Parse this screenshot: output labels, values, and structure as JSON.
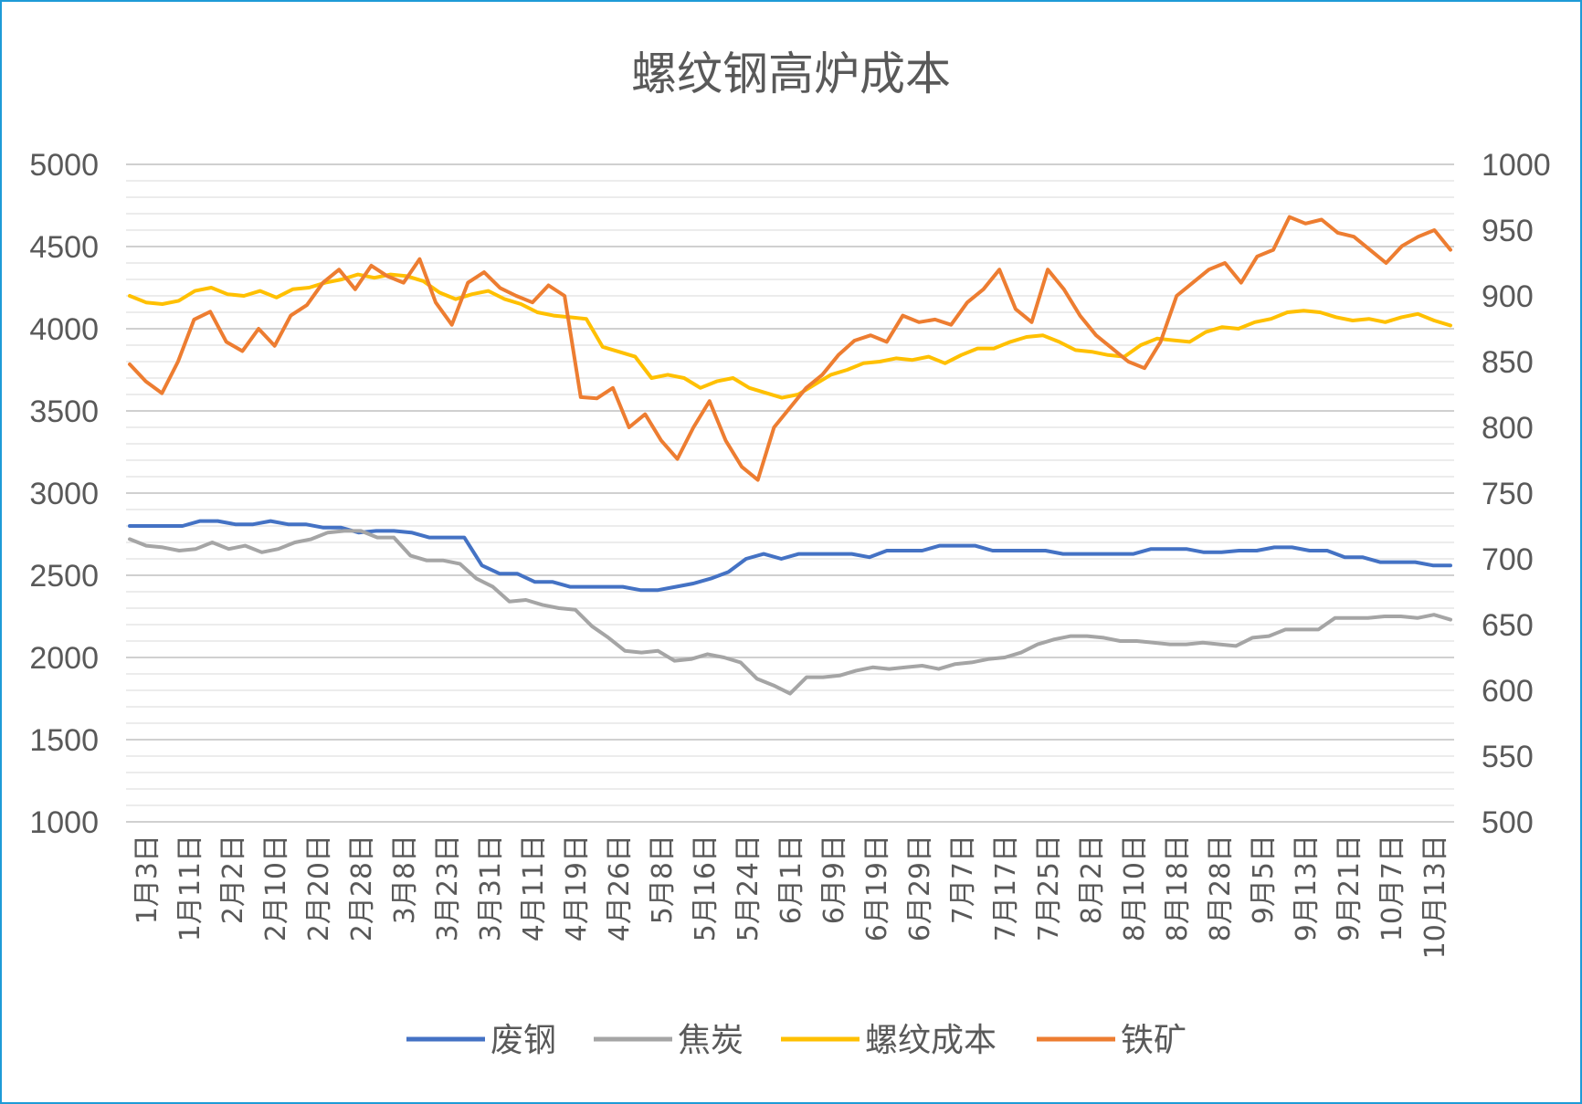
{
  "chart_data": {
    "type": "line",
    "title": "螺纹钢高炉成本",
    "left_axis": {
      "min": 1000,
      "max": 5000,
      "ticks": [
        "1000",
        "1500",
        "2000",
        "2500",
        "3000",
        "3500",
        "4000",
        "4500",
        "5000"
      ]
    },
    "right_axis": {
      "min": 500,
      "max": 1000,
      "ticks": [
        "500",
        "550",
        "600",
        "650",
        "700",
        "750",
        "800",
        "850",
        "900",
        "950",
        "1000"
      ]
    },
    "grid": true,
    "legend_position": "bottom",
    "x_labels": [
      "1月3日",
      "1月11日",
      "2月2日",
      "2月10日",
      "2月20日",
      "2月28日",
      "3月8日",
      "3月23日",
      "3月31日",
      "4月11日",
      "4月19日",
      "4月26日",
      "5月8日",
      "5月16日",
      "5月24日",
      "6月1日",
      "6月9日",
      "6月19日",
      "6月29日",
      "7月7日",
      "7月17日",
      "7月25日",
      "8月2日",
      "8月10日",
      "8月18日",
      "8月28日",
      "9月5日",
      "9月13日",
      "9月21日",
      "10月7日",
      "10月13日"
    ],
    "series": [
      {
        "name": "废钢",
        "axis": "left",
        "color": "#4472c4",
        "values": [
          2800,
          2800,
          2800,
          2800,
          2830,
          2830,
          2810,
          2810,
          2830,
          2810,
          2810,
          2790,
          2790,
          2760,
          2770,
          2770,
          2760,
          2730,
          2730,
          2730,
          2560,
          2510,
          2510,
          2460,
          2460,
          2430,
          2430,
          2430,
          2430,
          2410,
          2410,
          2430,
          2450,
          2480,
          2520,
          2600,
          2630,
          2600,
          2630,
          2630,
          2630,
          2630,
          2610,
          2650,
          2650,
          2650,
          2680,
          2680,
          2680,
          2650,
          2650,
          2650,
          2650,
          2630,
          2630,
          2630,
          2630,
          2630,
          2660,
          2660,
          2660,
          2640,
          2640,
          2650,
          2650,
          2670,
          2670,
          2650,
          2650,
          2610,
          2610,
          2580,
          2580,
          2580,
          2560,
          2560
        ]
      },
      {
        "name": "焦炭",
        "axis": "left",
        "color": "#a5a5a5",
        "values": [
          2720,
          2680,
          2670,
          2650,
          2660,
          2700,
          2660,
          2680,
          2640,
          2660,
          2700,
          2720,
          2760,
          2770,
          2770,
          2730,
          2730,
          2620,
          2590,
          2590,
          2570,
          2480,
          2430,
          2340,
          2350,
          2320,
          2300,
          2290,
          2190,
          2120,
          2040,
          2030,
          2040,
          1980,
          1990,
          2020,
          2000,
          1970,
          1870,
          1830,
          1780,
          1880,
          1880,
          1890,
          1920,
          1940,
          1930,
          1940,
          1950,
          1930,
          1960,
          1970,
          1990,
          2000,
          2030,
          2080,
          2110,
          2130,
          2130,
          2120,
          2100,
          2100,
          2090,
          2080,
          2080,
          2090,
          2080,
          2070,
          2120,
          2130,
          2170,
          2170,
          2170,
          2240,
          2240,
          2240,
          2250,
          2250,
          2240,
          2260,
          2230
        ]
      },
      {
        "name": "螺纹成本",
        "axis": "left",
        "color": "#ffc000",
        "values": [
          4200,
          4160,
          4150,
          4170,
          4230,
          4250,
          4210,
          4200,
          4230,
          4190,
          4240,
          4250,
          4280,
          4300,
          4330,
          4310,
          4330,
          4320,
          4290,
          4220,
          4180,
          4210,
          4230,
          4180,
          4150,
          4100,
          4080,
          4070,
          4060,
          3890,
          3860,
          3830,
          3700,
          3720,
          3700,
          3640,
          3680,
          3700,
          3640,
          3610,
          3580,
          3600,
          3660,
          3720,
          3750,
          3790,
          3800,
          3820,
          3810,
          3830,
          3790,
          3840,
          3880,
          3880,
          3920,
          3950,
          3960,
          3920,
          3870,
          3860,
          3840,
          3830,
          3900,
          3940,
          3930,
          3920,
          3980,
          4010,
          4000,
          4040,
          4060,
          4100,
          4110,
          4100,
          4070,
          4050,
          4060,
          4040,
          4070,
          4090,
          4050,
          4020
        ]
      },
      {
        "name": "铁矿",
        "axis": "right",
        "color": "#ed7d31",
        "values": [
          848,
          835,
          826,
          850,
          882,
          888,
          865,
          858,
          875,
          862,
          885,
          893,
          910,
          920,
          905,
          923,
          915,
          910,
          928,
          895,
          878,
          910,
          918,
          906,
          900,
          895,
          908,
          900,
          823,
          822,
          830,
          800,
          810,
          790,
          776,
          800,
          820,
          790,
          770,
          760,
          800,
          815,
          830,
          840,
          855,
          866,
          870,
          865,
          885,
          880,
          882,
          878,
          895,
          905,
          920,
          890,
          880,
          920,
          905,
          885,
          870,
          860,
          850,
          845,
          865,
          900,
          910,
          920,
          925,
          910,
          930,
          935,
          960,
          955,
          958,
          948,
          945,
          935,
          925,
          938,
          945,
          950,
          935
        ]
      }
    ]
  }
}
